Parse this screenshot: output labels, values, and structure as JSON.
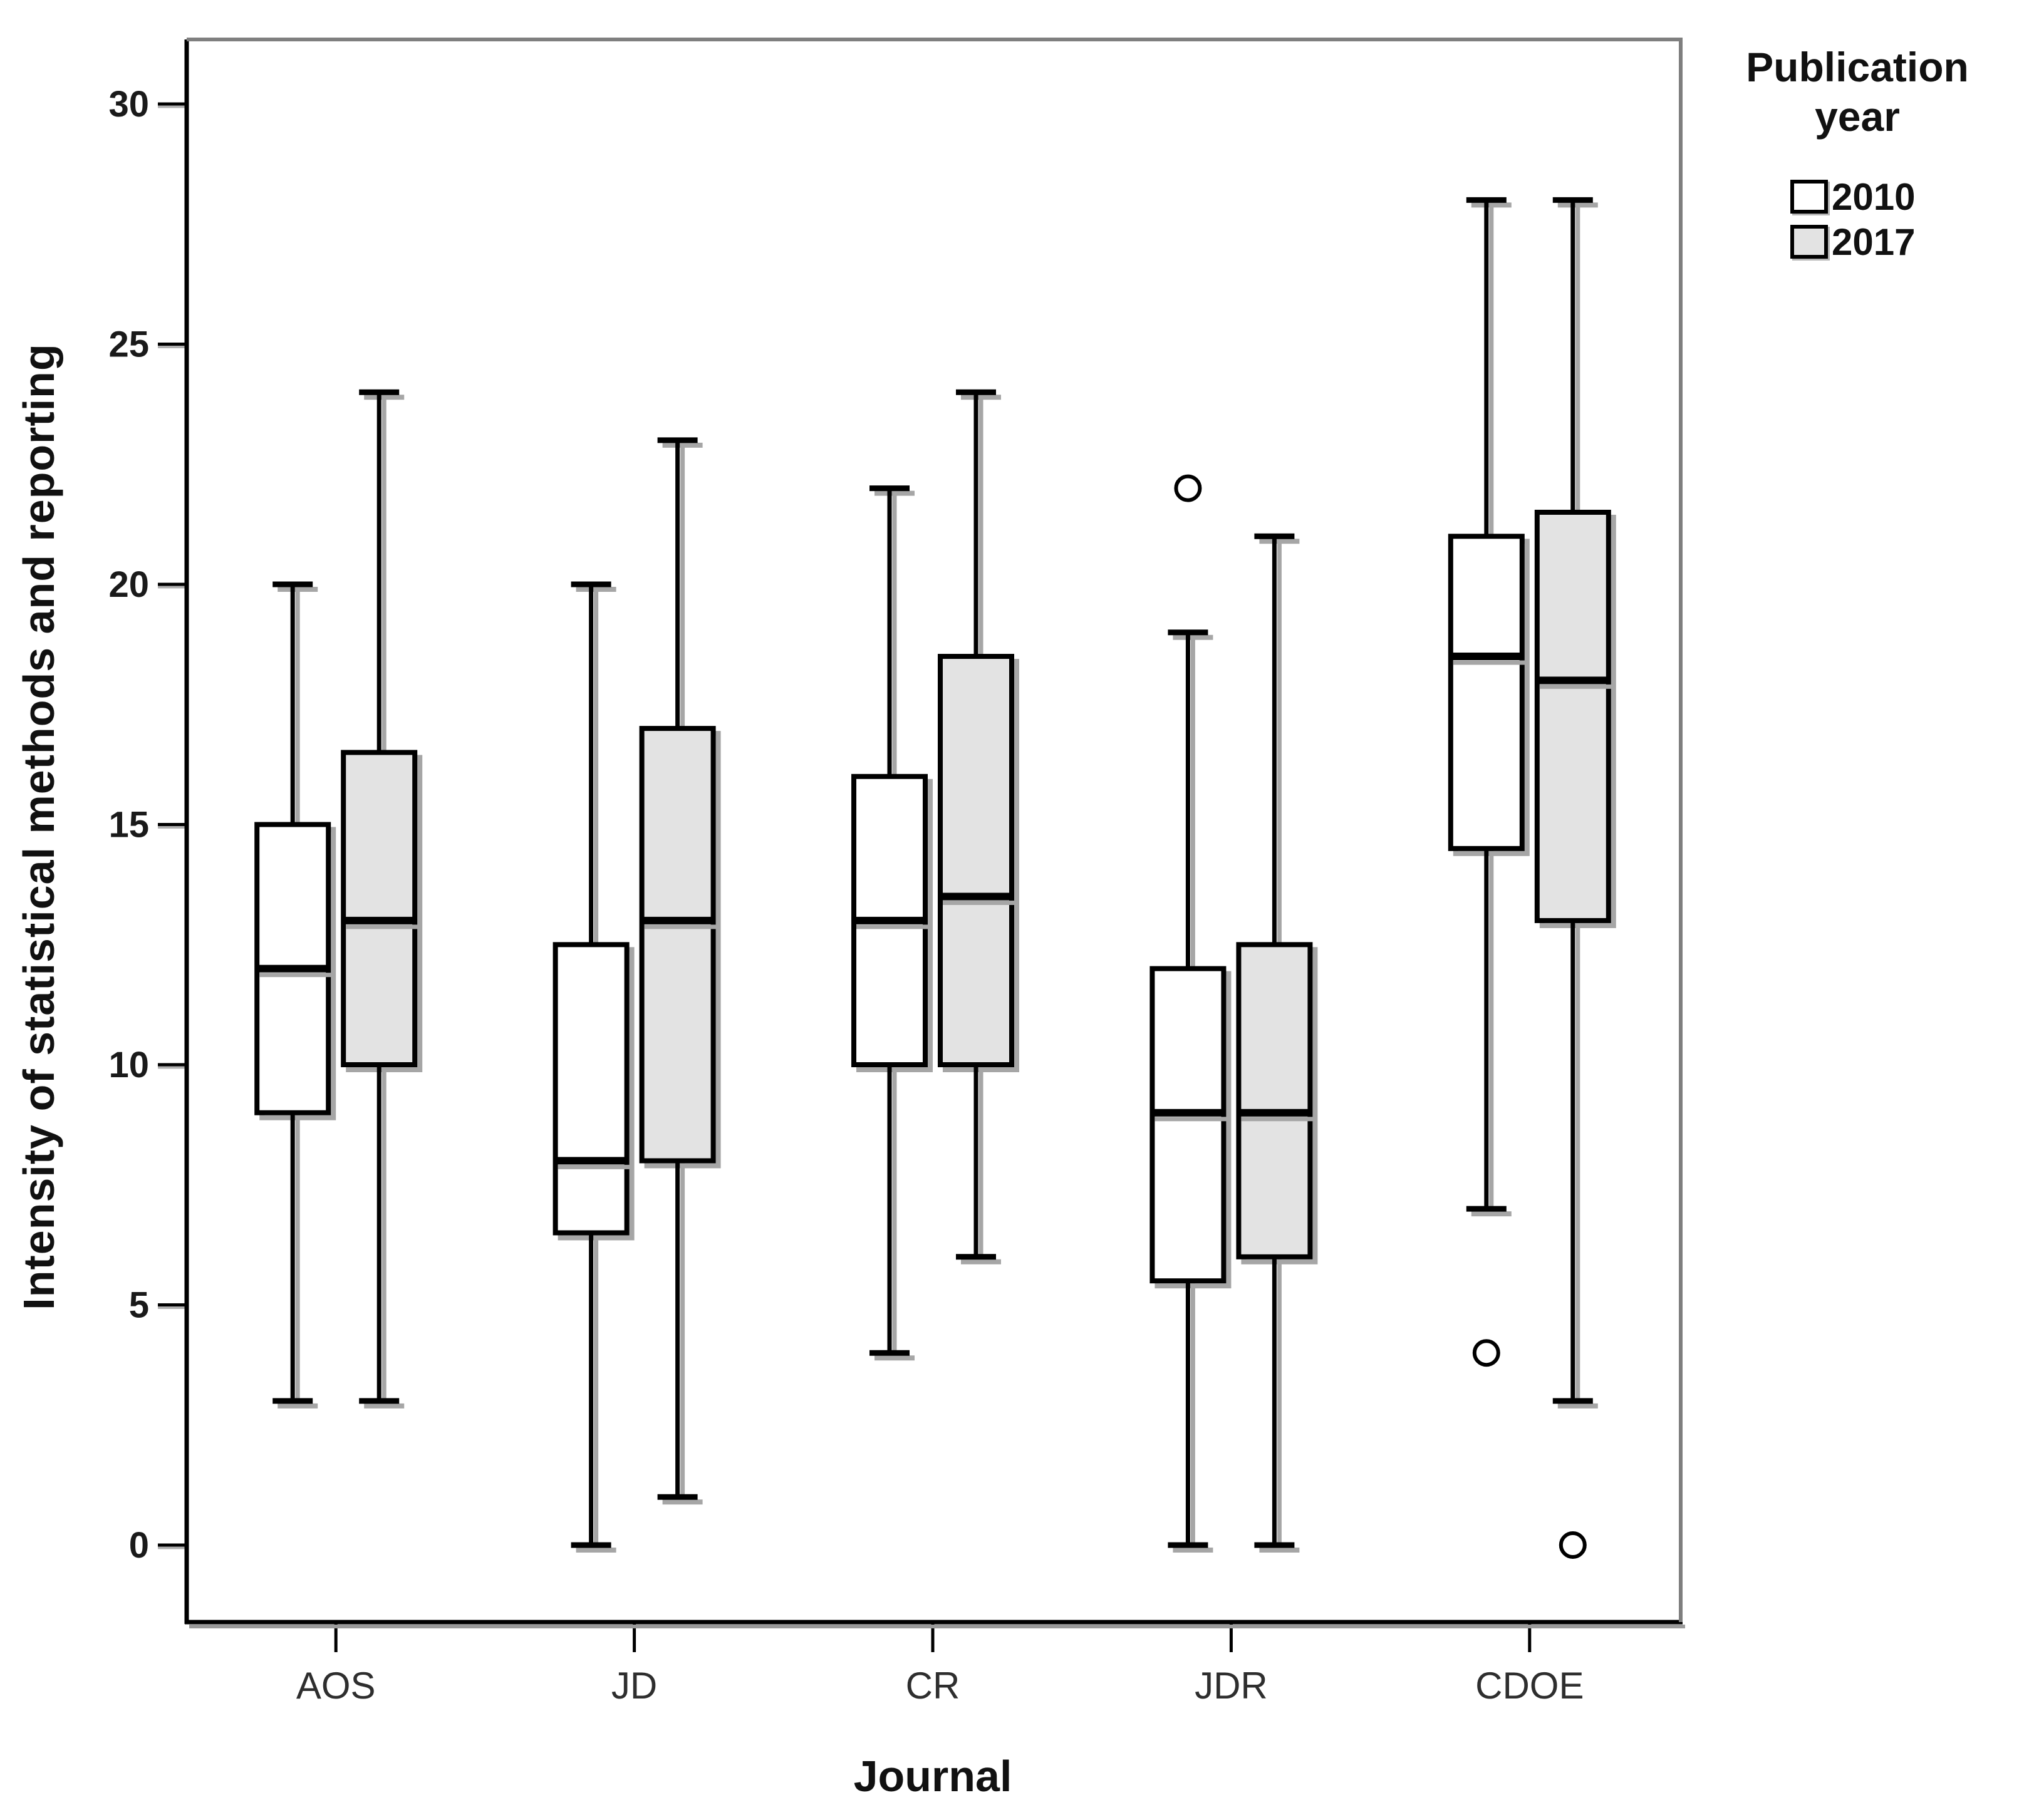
{
  "chart_data": {
    "type": "boxplot",
    "title": "",
    "xlabel": "Journal",
    "ylabel": "Intensity of statistical methods and reporting",
    "categories": [
      "AOS",
      "JD",
      "CR",
      "JDR",
      "CDOE"
    ],
    "y_ticks": [
      0,
      5,
      10,
      15,
      20,
      25,
      30
    ],
    "y_tick_labels": [
      "0",
      "5",
      "10",
      "15",
      "20",
      "25",
      "30"
    ],
    "ylim": [
      -1.6,
      31.4
    ],
    "grid": false,
    "legend": {
      "title_line1": "Publication",
      "title_line2": "year",
      "position": "outside-top-right",
      "entries": [
        {
          "label": "2010",
          "fill": "#ffffff"
        },
        {
          "label": "2017",
          "fill": "#e3e3e3"
        }
      ]
    },
    "colors": {
      "box_2010_fill": "#ffffff",
      "box_2017_fill": "#e3e3e3",
      "stroke": "#000000",
      "shadow": "#a6a6a6",
      "frame_dark": "#000000",
      "frame_gray": "#7f7f7f"
    },
    "series": [
      {
        "name": "2010",
        "fill": "#ffffff",
        "boxes": [
          {
            "category": "AOS",
            "whisker_low": 3,
            "q1": 9,
            "median": 12,
            "q3": 15,
            "whisker_high": 20,
            "outliers": []
          },
          {
            "category": "JD",
            "whisker_low": 0,
            "q1": 6.5,
            "median": 8,
            "q3": 12.5,
            "whisker_high": 20,
            "outliers": []
          },
          {
            "category": "CR",
            "whisker_low": 4,
            "q1": 10,
            "median": 13,
            "q3": 16,
            "whisker_high": 22,
            "outliers": []
          },
          {
            "category": "JDR",
            "whisker_low": 0,
            "q1": 5.5,
            "median": 9,
            "q3": 12,
            "whisker_high": 19,
            "outliers": [
              22
            ]
          },
          {
            "category": "CDOE",
            "whisker_low": 7,
            "q1": 14.5,
            "median": 18.5,
            "q3": 21,
            "whisker_high": 28,
            "outliers": [
              4
            ]
          }
        ]
      },
      {
        "name": "2017",
        "fill": "#e3e3e3",
        "boxes": [
          {
            "category": "AOS",
            "whisker_low": 3,
            "q1": 10,
            "median": 13,
            "q3": 16.5,
            "whisker_high": 24,
            "outliers": []
          },
          {
            "category": "JD",
            "whisker_low": 1,
            "q1": 8,
            "median": 13,
            "q3": 17,
            "whisker_high": 23,
            "outliers": []
          },
          {
            "category": "CR",
            "whisker_low": 6,
            "q1": 10,
            "median": 13.5,
            "q3": 18.5,
            "whisker_high": 24,
            "outliers": []
          },
          {
            "category": "JDR",
            "whisker_low": 0,
            "q1": 6,
            "median": 9,
            "q3": 12.5,
            "whisker_high": 21,
            "outliers": []
          },
          {
            "category": "CDOE",
            "whisker_low": 3,
            "q1": 13,
            "median": 18,
            "q3": 21.5,
            "whisker_high": 28,
            "outliers": [
              0
            ]
          }
        ]
      }
    ]
  }
}
